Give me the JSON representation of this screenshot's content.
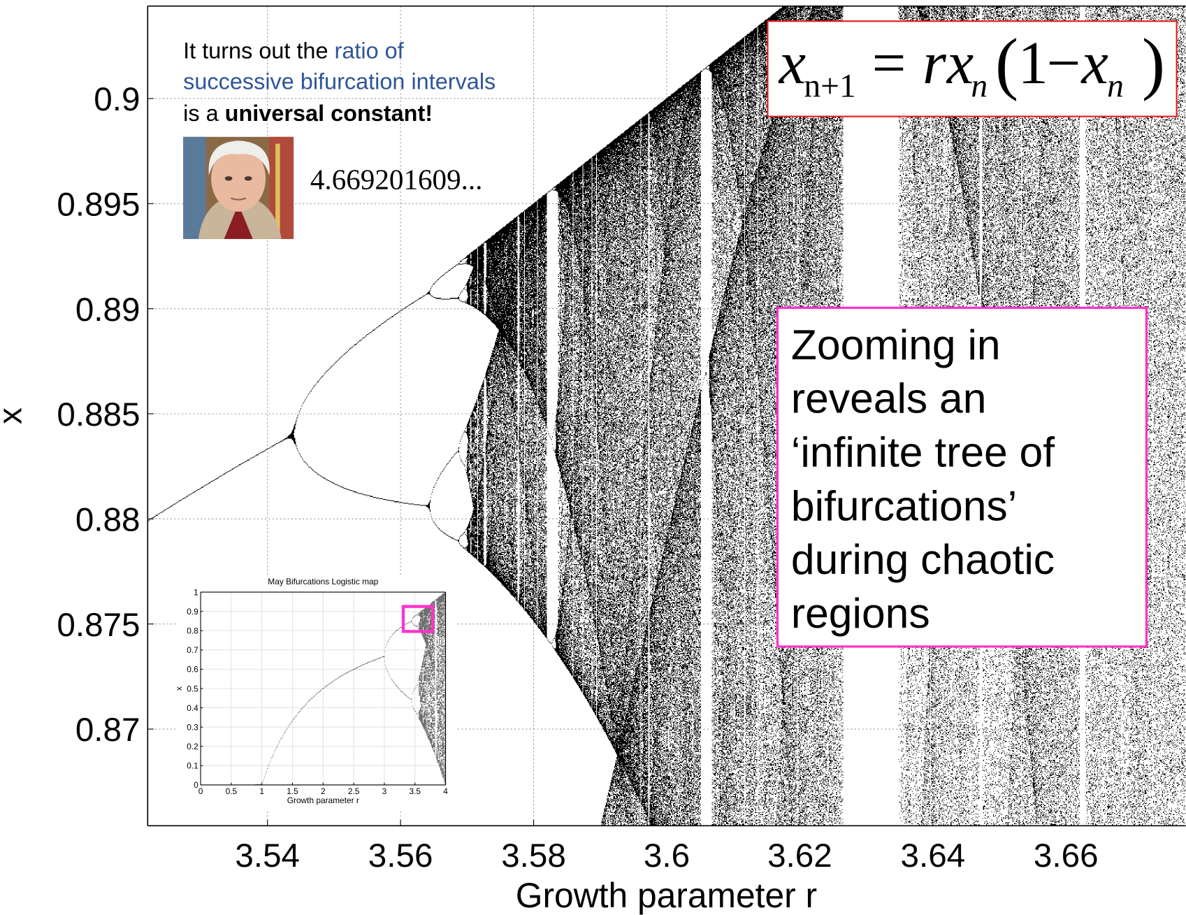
{
  "chart_data": [
    {
      "type": "bifurcation",
      "xlabel": "Growth parameter r",
      "ylabel": "x",
      "xlim": [
        3.522,
        3.678
      ],
      "ylim": [
        0.8654,
        0.9044
      ],
      "xticks": [
        3.54,
        3.56,
        3.58,
        3.6,
        3.62,
        3.64,
        3.66
      ],
      "yticks": [
        0.87,
        0.875,
        0.88,
        0.885,
        0.89,
        0.895,
        0.9
      ],
      "grid": true,
      "color": "#000000"
    },
    {
      "type": "bifurcation",
      "title": "May Bifurcations Logistic map",
      "xlabel": "Growth parameter r",
      "ylabel": "x",
      "xlim": [
        0,
        4
      ],
      "ylim": [
        0,
        1
      ],
      "xticks": [
        0,
        0.5,
        1,
        1.5,
        2,
        2.5,
        3,
        3.5,
        4
      ],
      "yticks": [
        0,
        0.1,
        0.2,
        0.3,
        0.4,
        0.5,
        0.6,
        0.7,
        0.8,
        0.9,
        1
      ],
      "grid": true,
      "color": "#707070"
    }
  ],
  "note": [
    [
      "It turns out the ",
      "ratio of"
    ],
    [
      "successive bifurcation intervals"
    ],
    [
      "is a ",
      "universal constant!"
    ]
  ],
  "constant": "4.669201609...",
  "equation": [
    "x",
    "n+1",
    "=",
    "r",
    "x",
    "n",
    "(",
    "1",
    "−",
    "x",
    "n",
    ")"
  ],
  "callout": [
    "Zooming in",
    "reveals an",
    "‘infinite tree of",
    "bifurcations’",
    "during chaotic",
    "regions"
  ]
}
